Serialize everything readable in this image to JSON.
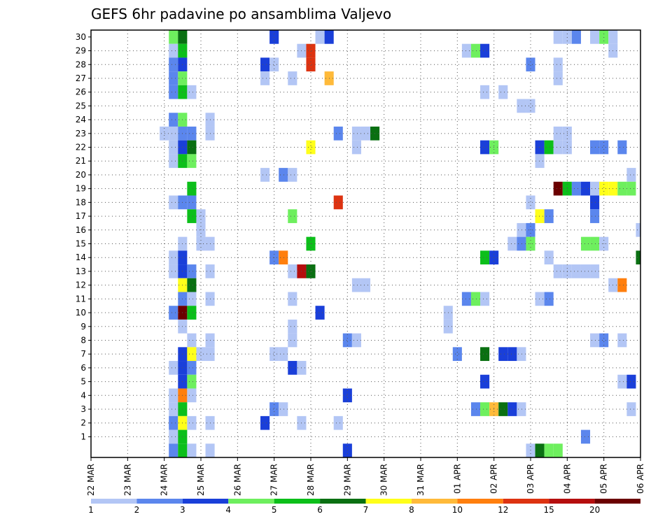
{
  "chart_data": {
    "type": "heatmap",
    "title": "GEFS 6hr padavine po ansamblima Valjevo",
    "x_labels": [
      "22 MAR",
      "23 MAR",
      "24 MAR",
      "25 MAR",
      "26 MAR",
      "27 MAR",
      "28 MAR",
      "29 MAR",
      "30 MAR",
      "31 MAR",
      "01 APR",
      "02 APR",
      "03 APR",
      "04 APR",
      "05 APR",
      "06 APR"
    ],
    "y_labels": [
      "1",
      "2",
      "3",
      "4",
      "5",
      "6",
      "7",
      "8",
      "9",
      "10",
      "11",
      "12",
      "13",
      "14",
      "15",
      "16",
      "17",
      "18",
      "19",
      "20",
      "21",
      "22",
      "23",
      "24",
      "25",
      "26",
      "27",
      "28",
      "29",
      "30"
    ],
    "xlim": [
      0,
      60
    ],
    "ylim": [
      -0.5,
      30.5
    ],
    "grid": true,
    "legend_position": "bottom",
    "legend_labels": [
      "1",
      "2",
      "3",
      "4",
      "5",
      "6",
      "7",
      "8",
      "10",
      "12",
      "15",
      "20"
    ],
    "legend_colors": [
      "#b3c6f5",
      "#5b86ed",
      "#1a3fd9",
      "#6eef5e",
      "#0cbf1a",
      "#0a7012",
      "#ffff1a",
      "#ffba3a",
      "#ff7f0e",
      "#dd3311",
      "#b50e0e",
      "#6b0000"
    ],
    "cell_map": {
      "1": "#b3c6f5",
      "2": "#5b86ed",
      "3": "#1a3fd9",
      "4": "#6eef5e",
      "5": "#0cbf1a",
      "6": "#0a7012",
      "7": "#ffff1a",
      "8": "#ffba3a",
      "10": "#ff7f0e",
      "12": "#dd3311",
      "15": "#b50e0e",
      "20": "#6b0000"
    },
    "cells": [
      [
        9,
        30,
        4
      ],
      [
        10,
        30,
        6
      ],
      [
        20,
        30,
        3
      ],
      [
        25,
        30,
        1
      ],
      [
        26,
        30,
        3
      ],
      [
        51,
        30,
        1
      ],
      [
        52,
        30,
        1
      ],
      [
        53,
        30,
        2
      ],
      [
        55,
        30,
        1
      ],
      [
        56,
        30,
        4
      ],
      [
        57,
        30,
        1
      ],
      [
        9,
        29,
        1
      ],
      [
        10,
        29,
        5
      ],
      [
        23,
        29,
        1
      ],
      [
        24,
        29,
        12
      ],
      [
        41,
        29,
        1
      ],
      [
        42,
        29,
        4
      ],
      [
        43,
        29,
        3
      ],
      [
        57,
        29,
        1
      ],
      [
        9,
        28,
        2
      ],
      [
        10,
        28,
        3
      ],
      [
        19,
        28,
        3
      ],
      [
        20,
        28,
        1
      ],
      [
        24,
        28,
        12
      ],
      [
        48,
        28,
        2
      ],
      [
        51,
        28,
        1
      ],
      [
        9,
        27,
        2
      ],
      [
        10,
        27,
        4
      ],
      [
        19,
        27,
        1
      ],
      [
        22,
        27,
        1
      ],
      [
        26,
        27,
        8
      ],
      [
        51,
        27,
        1
      ],
      [
        9,
        26,
        2
      ],
      [
        10,
        26,
        5
      ],
      [
        11,
        26,
        1
      ],
      [
        43,
        26,
        1
      ],
      [
        45,
        26,
        1
      ],
      [
        47,
        25,
        1
      ],
      [
        48,
        25,
        1
      ],
      [
        9,
        24,
        2
      ],
      [
        10,
        24,
        4
      ],
      [
        13,
        24,
        1
      ],
      [
        8,
        23,
        1
      ],
      [
        9,
        23,
        1
      ],
      [
        10,
        23,
        2
      ],
      [
        11,
        23,
        2
      ],
      [
        13,
        23,
        1
      ],
      [
        27,
        23,
        2
      ],
      [
        29,
        23,
        1
      ],
      [
        30,
        23,
        1
      ],
      [
        31,
        23,
        6
      ],
      [
        51,
        23,
        1
      ],
      [
        52,
        23,
        1
      ],
      [
        9,
        22,
        1
      ],
      [
        10,
        22,
        3
      ],
      [
        11,
        22,
        6
      ],
      [
        24,
        22,
        7
      ],
      [
        29,
        22,
        1
      ],
      [
        43,
        22,
        3
      ],
      [
        44,
        22,
        4
      ],
      [
        49,
        22,
        3
      ],
      [
        50,
        22,
        5
      ],
      [
        51,
        22,
        1
      ],
      [
        52,
        22,
        1
      ],
      [
        55,
        22,
        2
      ],
      [
        56,
        22,
        2
      ],
      [
        58,
        22,
        2
      ],
      [
        9,
        21,
        1
      ],
      [
        10,
        21,
        5
      ],
      [
        11,
        21,
        4
      ],
      [
        49,
        21,
        1
      ],
      [
        19,
        20,
        1
      ],
      [
        21,
        20,
        2
      ],
      [
        22,
        20,
        1
      ],
      [
        59,
        20,
        1
      ],
      [
        11,
        19,
        5
      ],
      [
        51,
        19,
        20
      ],
      [
        52,
        19,
        5
      ],
      [
        53,
        19,
        2
      ],
      [
        54,
        19,
        3
      ],
      [
        55,
        19,
        1
      ],
      [
        56,
        19,
        7
      ],
      [
        57,
        19,
        7
      ],
      [
        58,
        19,
        4
      ],
      [
        59,
        19,
        4
      ],
      [
        9,
        18,
        1
      ],
      [
        10,
        18,
        2
      ],
      [
        11,
        18,
        2
      ],
      [
        27,
        18,
        12
      ],
      [
        48,
        18,
        1
      ],
      [
        55,
        18,
        3
      ],
      [
        11,
        17,
        5
      ],
      [
        12,
        17,
        1
      ],
      [
        22,
        17,
        4
      ],
      [
        49,
        17,
        7
      ],
      [
        50,
        17,
        2
      ],
      [
        55,
        17,
        2
      ],
      [
        12,
        16,
        1
      ],
      [
        47,
        16,
        1
      ],
      [
        48,
        16,
        2
      ],
      [
        60,
        16,
        1
      ],
      [
        10,
        15,
        1
      ],
      [
        12,
        15,
        1
      ],
      [
        13,
        15,
        1
      ],
      [
        24,
        15,
        5
      ],
      [
        46,
        15,
        1
      ],
      [
        47,
        15,
        2
      ],
      [
        48,
        15,
        4
      ],
      [
        54,
        15,
        4
      ],
      [
        55,
        15,
        4
      ],
      [
        56,
        15,
        1
      ],
      [
        9,
        14,
        1
      ],
      [
        10,
        14,
        3
      ],
      [
        20,
        14,
        2
      ],
      [
        21,
        14,
        10
      ],
      [
        43,
        14,
        5
      ],
      [
        44,
        14,
        3
      ],
      [
        50,
        14,
        1
      ],
      [
        60,
        14,
        6
      ],
      [
        9,
        13,
        1
      ],
      [
        10,
        13,
        3
      ],
      [
        11,
        13,
        2
      ],
      [
        13,
        13,
        1
      ],
      [
        22,
        13,
        1
      ],
      [
        23,
        13,
        15
      ],
      [
        24,
        13,
        6
      ],
      [
        51,
        13,
        1
      ],
      [
        52,
        13,
        1
      ],
      [
        53,
        13,
        1
      ],
      [
        54,
        13,
        1
      ],
      [
        55,
        13,
        1
      ],
      [
        10,
        12,
        7
      ],
      [
        11,
        12,
        6
      ],
      [
        29,
        12,
        1
      ],
      [
        30,
        12,
        1
      ],
      [
        57,
        12,
        1
      ],
      [
        58,
        12,
        10
      ],
      [
        10,
        11,
        2
      ],
      [
        11,
        11,
        1
      ],
      [
        13,
        11,
        1
      ],
      [
        22,
        11,
        1
      ],
      [
        41,
        11,
        2
      ],
      [
        42,
        11,
        4
      ],
      [
        43,
        11,
        1
      ],
      [
        49,
        11,
        1
      ],
      [
        50,
        11,
        2
      ],
      [
        9,
        10,
        2
      ],
      [
        10,
        10,
        20
      ],
      [
        11,
        10,
        5
      ],
      [
        25,
        10,
        3
      ],
      [
        39,
        10,
        1
      ],
      [
        10,
        9,
        1
      ],
      [
        22,
        9,
        1
      ],
      [
        39,
        9,
        1
      ],
      [
        11,
        8,
        1
      ],
      [
        13,
        8,
        1
      ],
      [
        22,
        8,
        1
      ],
      [
        28,
        8,
        2
      ],
      [
        29,
        8,
        1
      ],
      [
        55,
        8,
        1
      ],
      [
        56,
        8,
        2
      ],
      [
        58,
        8,
        1
      ],
      [
        10,
        7,
        3
      ],
      [
        11,
        7,
        7
      ],
      [
        12,
        7,
        1
      ],
      [
        13,
        7,
        1
      ],
      [
        20,
        7,
        1
      ],
      [
        21,
        7,
        1
      ],
      [
        40,
        7,
        2
      ],
      [
        43,
        7,
        6
      ],
      [
        45,
        7,
        3
      ],
      [
        46,
        7,
        3
      ],
      [
        47,
        7,
        1
      ],
      [
        9,
        6,
        1
      ],
      [
        10,
        6,
        3
      ],
      [
        11,
        6,
        2
      ],
      [
        22,
        6,
        3
      ],
      [
        23,
        6,
        1
      ],
      [
        10,
        5,
        3
      ],
      [
        11,
        5,
        4
      ],
      [
        43,
        5,
        3
      ],
      [
        58,
        5,
        1
      ],
      [
        59,
        5,
        3
      ],
      [
        9,
        4,
        1
      ],
      [
        10,
        4,
        10
      ],
      [
        11,
        4,
        1
      ],
      [
        28,
        4,
        3
      ],
      [
        9,
        3,
        1
      ],
      [
        10,
        3,
        5
      ],
      [
        20,
        3,
        2
      ],
      [
        21,
        3,
        1
      ],
      [
        42,
        3,
        2
      ],
      [
        43,
        3,
        4
      ],
      [
        44,
        3,
        8
      ],
      [
        45,
        3,
        6
      ],
      [
        46,
        3,
        3
      ],
      [
        47,
        3,
        1
      ],
      [
        59,
        3,
        1
      ],
      [
        9,
        2,
        2
      ],
      [
        10,
        2,
        7
      ],
      [
        11,
        2,
        1
      ],
      [
        13,
        2,
        1
      ],
      [
        19,
        2,
        3
      ],
      [
        23,
        2,
        1
      ],
      [
        27,
        2,
        1
      ],
      [
        9,
        1,
        1
      ],
      [
        10,
        1,
        5
      ],
      [
        54,
        1,
        2
      ],
      [
        9,
        0,
        2
      ],
      [
        10,
        0,
        5
      ],
      [
        11,
        0,
        1
      ],
      [
        13,
        0,
        1
      ],
      [
        28,
        0,
        3
      ],
      [
        48,
        0,
        1
      ],
      [
        49,
        0,
        6
      ],
      [
        50,
        0,
        4
      ],
      [
        51,
        0,
        4
      ]
    ]
  }
}
